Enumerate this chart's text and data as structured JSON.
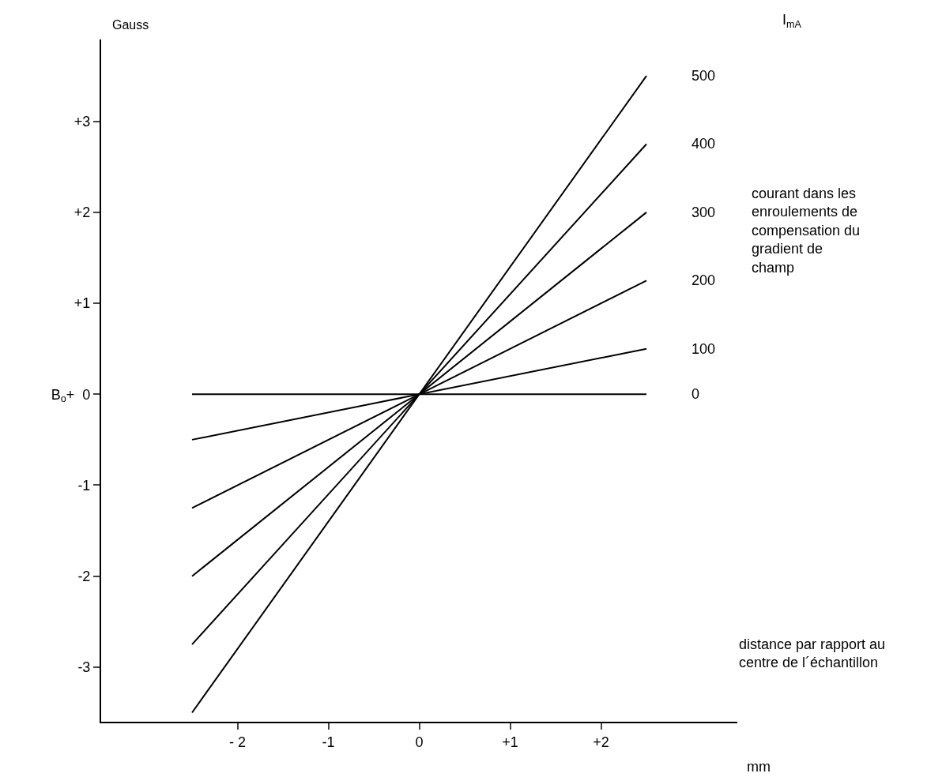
{
  "chart_data": {
    "type": "line",
    "ylabel": "Gauss",
    "xlabel": "mm",
    "legend_title": "I$_{mA}$",
    "x": [
      -2.5,
      2.5
    ],
    "series": [
      {
        "name": "500",
        "color": "#000000",
        "values": [
          -3.5,
          3.5
        ]
      },
      {
        "name": "400",
        "color": "#000000",
        "values": [
          -2.75,
          2.75
        ]
      },
      {
        "name": "300",
        "color": "#000000",
        "values": [
          -2.0,
          2.0
        ]
      },
      {
        "name": "200",
        "color": "#000000",
        "values": [
          -1.25,
          1.25
        ]
      },
      {
        "name": "100",
        "color": "#000000",
        "values": [
          -0.5,
          0.5
        ]
      },
      {
        "name": "0",
        "color": "#000000",
        "values": [
          0,
          0
        ]
      }
    ],
    "xlim": [
      -3.5,
      3.5
    ],
    "ylim": [
      -3.6,
      3.9
    ],
    "xticks": [
      {
        "value": -2,
        "label": "- 2"
      },
      -1,
      0,
      {
        "value": 1,
        "label": "+1"
      },
      {
        "value": 2,
        "label": "+2"
      }
    ],
    "yticks": [
      {
        "value": -3,
        "label": "-3"
      },
      {
        "value": -2,
        "label": "-2"
      },
      {
        "value": -1,
        "label": "-1"
      },
      {
        "value": 0,
        "label": "B$_{o}$+  0"
      },
      {
        "value": 1,
        "label": "+1"
      },
      {
        "value": 2,
        "label": "+2"
      },
      {
        "value": 3,
        "label": "+3"
      }
    ],
    "annotations": [
      "courant dans les enroulements de compensation du gradient de champ",
      "distance par rapport au centre de l´échantillon"
    ],
    "grid": false,
    "legend": false,
    "marker": "none",
    "line_style": "solid"
  }
}
